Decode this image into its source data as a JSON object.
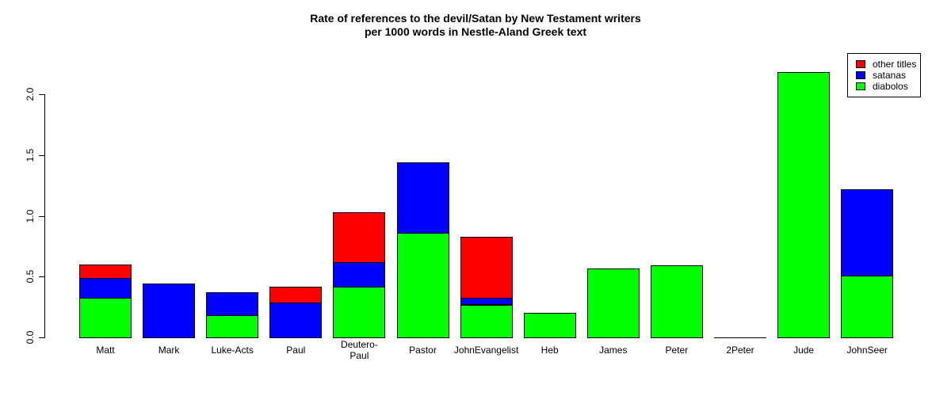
{
  "chart_data": {
    "type": "bar",
    "stacked": true,
    "title": "Rate of references to the devil/Satan by New Testament writers\nper 1000 words in Nestle-Aland Greek text",
    "title_lines": [
      "Rate of references to the devil/Satan by New Testament writers",
      "per 1000 words in Nestle-Aland Greek text"
    ],
    "xlabel": "",
    "ylabel": "",
    "ylim": [
      0,
      2.2
    ],
    "yticks": [
      "0.0",
      "0.5",
      "1.0",
      "1.5",
      "2.0"
    ],
    "categories": [
      "Matt",
      "Mark",
      "Luke-Acts",
      "Paul",
      "Deutero-\nPaul",
      "Pastor",
      "JohnEvangelist",
      "Heb",
      "James",
      "Peter",
      "2Peter",
      "Jude",
      "JohnSeer"
    ],
    "series": [
      {
        "name": "diabolos",
        "color": "#00ff00",
        "values": [
          0.33,
          0.0,
          0.18,
          0.0,
          0.42,
          0.86,
          0.27,
          0.2,
          0.57,
          0.59,
          0.0,
          2.18,
          0.51
        ]
      },
      {
        "name": "satanas",
        "color": "#0000ff",
        "values": [
          0.16,
          0.44,
          0.19,
          0.29,
          0.2,
          0.58,
          0.06,
          0.0,
          0.0,
          0.0,
          0.0,
          0.0,
          0.71
        ]
      },
      {
        "name": "other titles",
        "color": "#ff0000",
        "values": [
          0.11,
          0.0,
          0.0,
          0.13,
          0.41,
          0.0,
          0.5,
          0.0,
          0.0,
          0.0,
          0.0,
          0.0,
          0.0
        ]
      }
    ],
    "legend": {
      "position": "topright",
      "entries": [
        "other titles",
        "satanas",
        "diabolos"
      ]
    },
    "grid": false
  },
  "legend": {
    "items": [
      {
        "label": "other titles",
        "color": "#ff0000"
      },
      {
        "label": "satanas",
        "color": "#0000ff"
      },
      {
        "label": "diabolos",
        "color": "#00ff00"
      }
    ]
  }
}
